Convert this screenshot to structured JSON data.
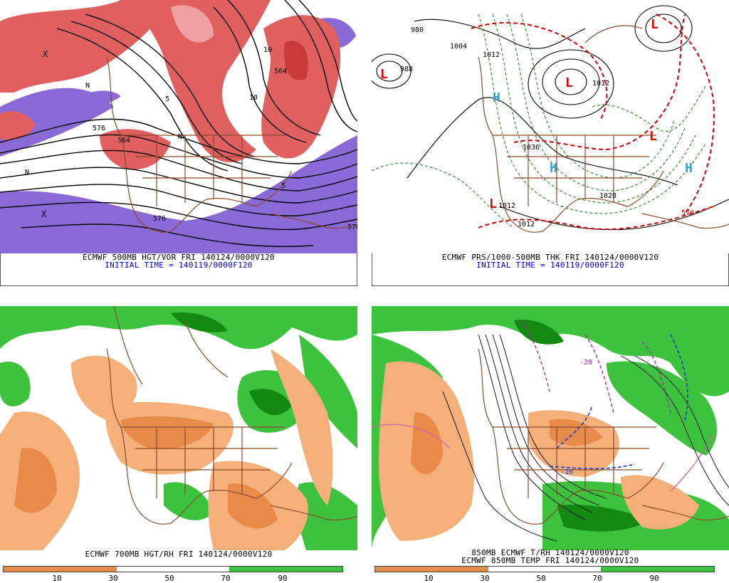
{
  "panels": {
    "top_left": {
      "caption": "ECMWF 500MB HGT/VOR FRI 140124/0000V120",
      "initial": "INITIAL TIME = 140119/0000F120",
      "contour_labels": [
        "576",
        "576",
        "576",
        "564",
        "564",
        "10",
        "10",
        "5",
        "5",
        "N",
        "N",
        "N",
        "X",
        "X"
      ]
    },
    "top_right": {
      "caption": "ECMWF PRS/1000-500MB THK FRI 140124/0000V120",
      "initial": "INITIAL TIME = 140119/0000F120",
      "contour_labels": [
        "988",
        "980",
        "1004",
        "1012",
        "1012",
        "1036",
        "1028",
        "1012",
        "1012",
        "570"
      ],
      "highs": [
        "H",
        "H",
        "H"
      ],
      "lows": [
        "L",
        "L",
        "L",
        "L",
        "L"
      ]
    },
    "bottom_left": {
      "caption": "ECMWF 700MB HGT/RH FRI 140124/0000V120",
      "colorbar_labels": [
        "10",
        "30",
        "50",
        "70",
        "90"
      ]
    },
    "bottom_right": {
      "caption_line1": "850MB ECMWF T/RH 140124/0000V120",
      "caption_line2": "ECMWF 850MB TEMP FRI 140124/0000V120",
      "contour_labels": [
        "-20",
        "-10"
      ],
      "colorbar_labels": [
        "10",
        "30",
        "50",
        "70",
        "90"
      ]
    }
  },
  "colors": {
    "vorticity_pos": "#e06060",
    "vorticity_pos_light": "#f0a0a0",
    "vorticity_neg": "#8a6ad6",
    "rh_dry_dark": "#e88a4a",
    "rh_dry_light": "#f4b078",
    "rh_moist_light": "#3cc23c",
    "rh_moist_dark": "#128a12",
    "geography": "#8b4a2a",
    "thickness": "#cc0000",
    "thickness_cold": "#1a8a1a",
    "high_marker": "#22aadd",
    "low_marker": "#dd0000"
  }
}
